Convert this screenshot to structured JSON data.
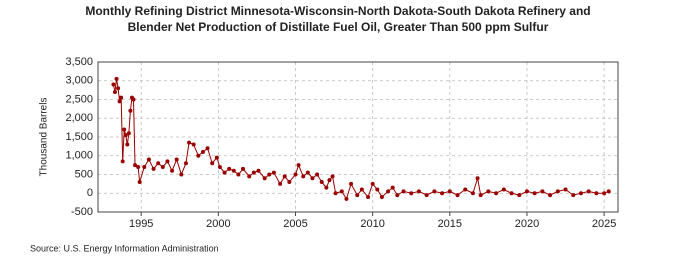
{
  "chart_data": {
    "type": "line",
    "title": "Monthly Refining District Minnesota-Wisconsin-North Dakota-South Dakota Refinery and",
    "subtitle": "Blender Net Production of Distillate Fuel Oil, Greater Than 500 ppm Sulfur",
    "y_label": "Thousand Barrels",
    "source": "Source: U.S. Energy Information Administration",
    "xlim": [
      1992.2,
      2025.9
    ],
    "xticks": [
      1995,
      2000,
      2005,
      2010,
      2015,
      2020,
      2025
    ],
    "ylim": [
      -500,
      3500
    ],
    "yticks": [
      {
        "value": 3500,
        "label": "3,500"
      },
      {
        "value": 3000,
        "label": "3,000"
      },
      {
        "value": 2500,
        "label": "2,500"
      },
      {
        "value": 2000,
        "label": "2,000"
      },
      {
        "value": 1500,
        "label": "1,500"
      },
      {
        "value": 1000,
        "label": "1,000"
      },
      500,
      0,
      -500
    ],
    "grid": true,
    "series": [
      {
        "name": "Distillate Fuel Oil, Greater Than 500 ppm Sulfur",
        "color": "#990000",
        "x": [
          1993.2,
          1993.3,
          1993.4,
          1993.5,
          1993.6,
          1993.7,
          1993.8,
          1993.9,
          1994.0,
          1994.1,
          1994.2,
          1994.3,
          1994.4,
          1994.5,
          1994.6,
          1994.8,
          1994.9,
          1995.2,
          1995.5,
          1995.8,
          1996.1,
          1996.4,
          1996.7,
          1997.0,
          1997.3,
          1997.6,
          1997.9,
          1998.1,
          1998.4,
          1998.7,
          1999.0,
          1999.3,
          1999.6,
          1999.9,
          2000.1,
          2000.4,
          2000.7,
          2001.0,
          2001.3,
          2001.6,
          2002.0,
          2002.3,
          2002.6,
          2003.0,
          2003.3,
          2003.6,
          2004.0,
          2004.3,
          2004.6,
          2005.0,
          2005.2,
          2005.5,
          2005.8,
          2006.1,
          2006.4,
          2006.7,
          2007.0,
          2007.2,
          2007.4,
          2007.6,
          2008.0,
          2008.3,
          2008.6,
          2009.0,
          2009.3,
          2009.7,
          2010.0,
          2010.3,
          2010.6,
          2011.0,
          2011.3,
          2011.6,
          2012.0,
          2012.5,
          2013.0,
          2013.5,
          2014.0,
          2014.5,
          2015.0,
          2015.5,
          2016.0,
          2016.5,
          2016.8,
          2017.0,
          2017.5,
          2018.0,
          2018.5,
          2019.0,
          2019.5,
          2020.0,
          2020.5,
          2021.0,
          2021.5,
          2022.0,
          2022.5,
          2023.0,
          2023.5,
          2024.0,
          2024.5,
          2025.0,
          2025.3
        ],
        "values": [
          2900,
          2700,
          3050,
          2800,
          2450,
          2550,
          850,
          1700,
          1550,
          1300,
          1600,
          2200,
          2550,
          2500,
          750,
          700,
          300,
          700,
          900,
          650,
          800,
          700,
          850,
          600,
          900,
          500,
          800,
          1350,
          1300,
          1000,
          1100,
          1200,
          800,
          950,
          700,
          550,
          650,
          600,
          500,
          650,
          450,
          550,
          600,
          400,
          500,
          550,
          250,
          450,
          300,
          500,
          750,
          450,
          550,
          400,
          500,
          300,
          150,
          350,
          450,
          0,
          50,
          -150,
          250,
          -50,
          100,
          -100,
          250,
          100,
          -100,
          50,
          150,
          -50,
          50,
          0,
          50,
          -50,
          50,
          0,
          50,
          -50,
          100,
          0,
          400,
          -50,
          50,
          0,
          100,
          0,
          -50,
          50,
          0,
          50,
          -50,
          50,
          100,
          -50,
          0,
          50,
          0,
          0,
          50
        ]
      }
    ]
  }
}
